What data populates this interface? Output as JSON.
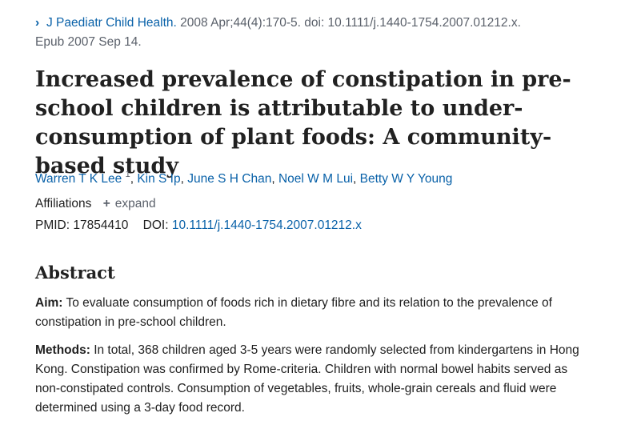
{
  "citation": {
    "journal": "J Paediatr Child Health.",
    "details": "2008 Apr;44(4):170-5. doi: 10.1111/j.1440-1754.2007.01212.x.",
    "epub": "Epub 2007 Sep 14."
  },
  "title": "Increased prevalence of constipation in pre-school children is attributable to under-consumption of plant foods: A community-based study",
  "authors": [
    {
      "name": "Warren T K Lee",
      "sup": "1"
    },
    {
      "name": "Kin S Ip"
    },
    {
      "name": "June S H Chan"
    },
    {
      "name": "Noel W M Lui"
    },
    {
      "name": "Betty W Y Young"
    }
  ],
  "affiliations": {
    "label": "Affiliations",
    "expand_label": "expand"
  },
  "ids": {
    "pmid_label": "PMID:",
    "pmid": "17854410",
    "doi_label": "DOI:",
    "doi": "10.1111/j.1440-1754.2007.01212.x"
  },
  "abstract": {
    "heading": "Abstract",
    "aim_label": "Aim:",
    "aim_text": "To evaluate consumption of foods rich in dietary fibre and its relation to the prevalence of constipation in pre-school children.",
    "methods_label": "Methods:",
    "methods_text": "In total, 368 children aged 3-5 years were randomly selected from kindergartens in Hong Kong. Constipation was confirmed by Rome-criteria. Children with normal bowel habits served as non-constipated controls. Consumption of vegetables, fruits, whole-grain cereals and fluid were determined using a 3-day food record."
  },
  "colors": {
    "link": "#0a62a9",
    "text": "#212121",
    "muted": "#5b616b"
  }
}
